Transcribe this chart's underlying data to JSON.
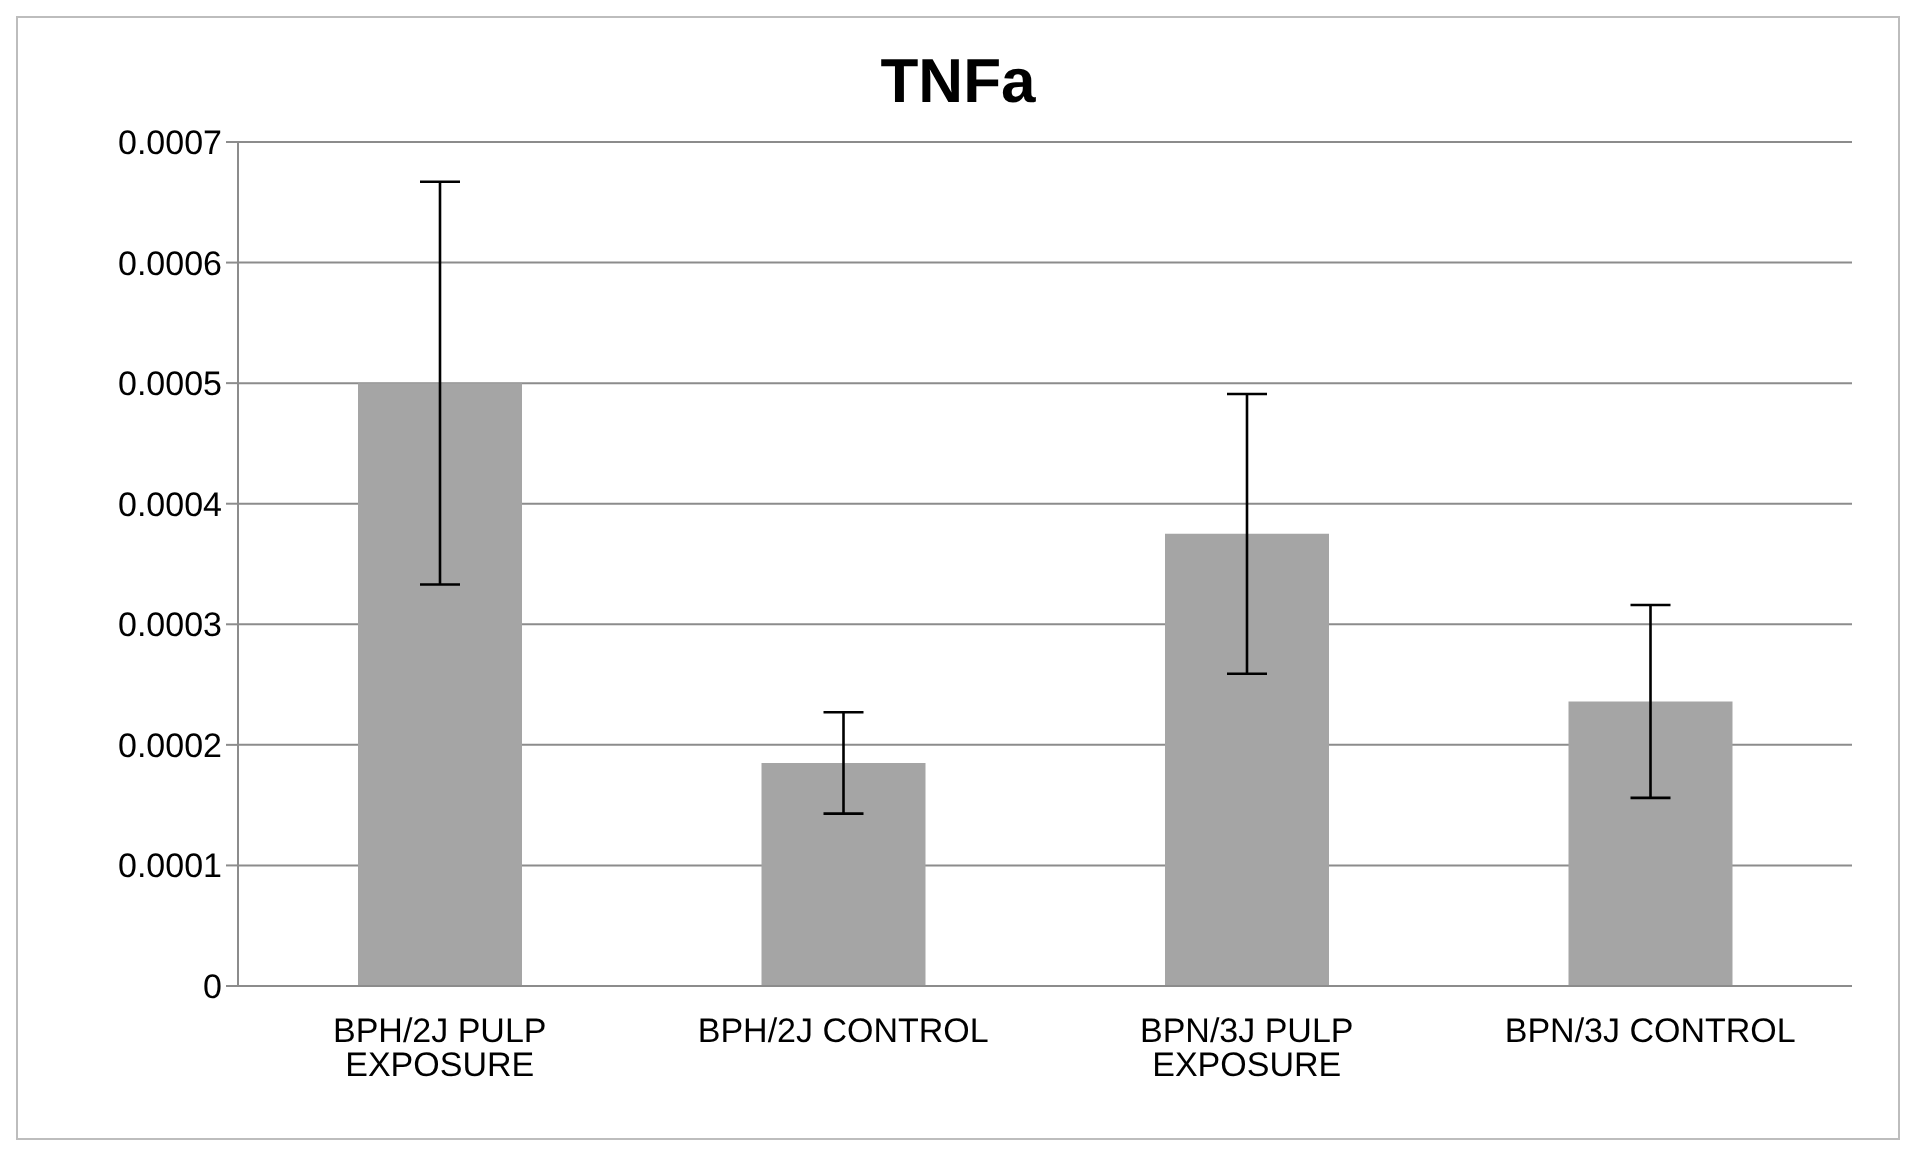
{
  "chart_data": {
    "type": "bar",
    "title": "TNFa",
    "categories": [
      "BPH/2J PULP EXPOSURE",
      "BPH/2J CONTROL",
      "BPN/3J PULP EXPOSURE",
      "BPN/3J CONTROL"
    ],
    "values": [
      0.0005,
      0.000185,
      0.000375,
      0.000236
    ],
    "errors": [
      0.000167,
      4.2e-05,
      0.000116,
      8e-05
    ],
    "color": "#a5a5a5",
    "ylim": [
      0,
      0.0007
    ],
    "yticks": [
      0,
      0.0001,
      0.0002,
      0.0003,
      0.0004,
      0.0005,
      0.0006,
      0.0007
    ],
    "grid": "y",
    "legend": false
  }
}
